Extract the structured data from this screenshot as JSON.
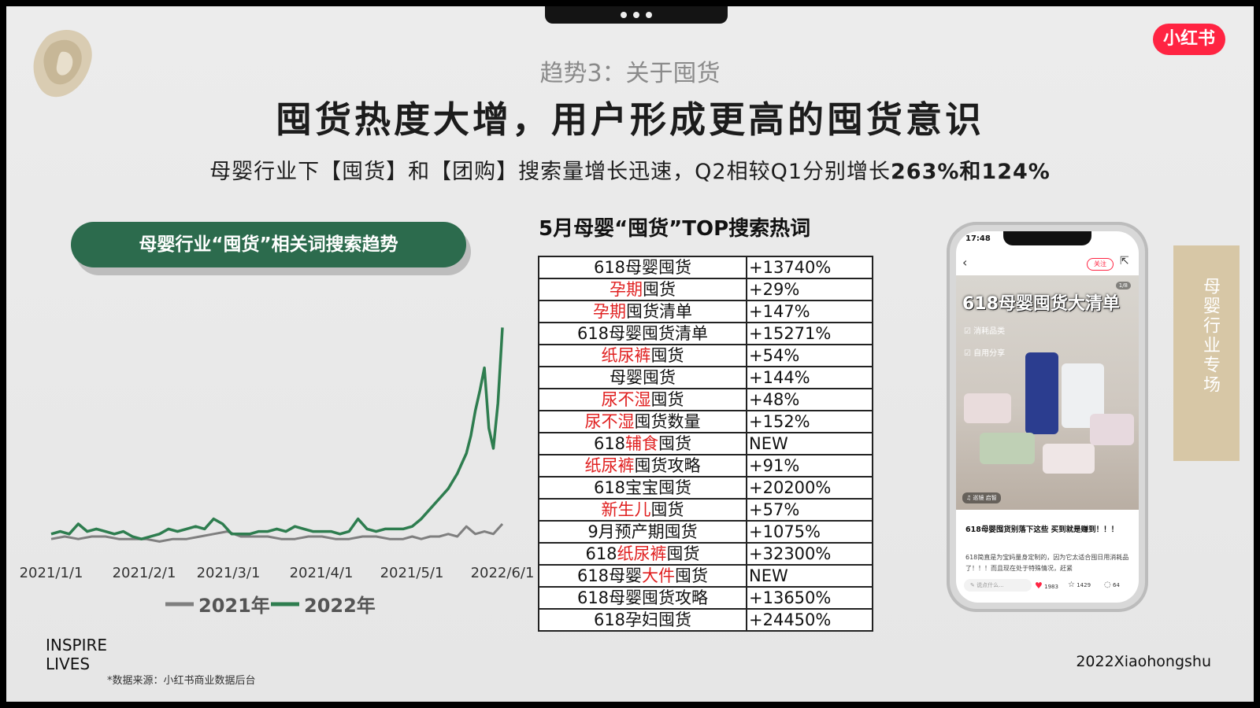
{
  "header": {
    "subtitle": "趋势3：关于囤货",
    "headline": "囤货热度大增，用户形成更高的囤货意识",
    "desc_prefix": "母婴行业下【囤货】和【团购】搜索量增长迅速，Q2相较Q1分别增长",
    "desc_highlight": "263%和124%"
  },
  "brand_logo": "小红书",
  "chart_pill": "母婴行业“囤货”相关词搜索趋势",
  "chart_data": {
    "type": "line",
    "x_tick_labels": [
      "2021/1/1",
      "2021/2/1",
      "2021/3/1",
      "2021/4/1",
      "2021/5/1",
      "2022/6/1"
    ],
    "legend": [
      "2021年",
      "2022年"
    ],
    "ylim": [
      0,
      100
    ],
    "grid": false,
    "series": [
      {
        "name": "2021年",
        "color": "#7f7f7f",
        "x": [
          0,
          3,
          6,
          9,
          12,
          15,
          18,
          21,
          24,
          27,
          30,
          33,
          36,
          39,
          42,
          45,
          48,
          51,
          54,
          57,
          60,
          63,
          66,
          69,
          72,
          75,
          78,
          80,
          82,
          84,
          86,
          88,
          90,
          92,
          94,
          96,
          98,
          100
        ],
        "values": [
          4,
          5,
          4,
          5,
          5,
          4,
          4,
          4,
          3,
          4,
          4,
          5,
          6,
          7,
          5,
          5,
          5,
          4,
          4,
          5,
          5,
          4,
          4,
          5,
          5,
          4,
          4,
          5,
          4,
          5,
          5,
          6,
          5,
          9,
          6,
          7,
          6,
          10
        ]
      },
      {
        "name": "2022年",
        "color": "#2e7d4f",
        "x": [
          0,
          2,
          4,
          6,
          8,
          10,
          12,
          14,
          16,
          18,
          20,
          22,
          24,
          26,
          28,
          30,
          32,
          34,
          36,
          38,
          40,
          42,
          44,
          46,
          48,
          50,
          52,
          54,
          56,
          58,
          60,
          62,
          64,
          66,
          68,
          70,
          72,
          74,
          76,
          78,
          80,
          82,
          84,
          86,
          88,
          90,
          91,
          92,
          93,
          94,
          95,
          96,
          97,
          98,
          99,
          100
        ],
        "values": [
          6,
          7,
          6,
          10,
          7,
          8,
          7,
          6,
          7,
          5,
          4,
          5,
          6,
          8,
          7,
          8,
          9,
          8,
          12,
          10,
          6,
          6,
          6,
          7,
          7,
          8,
          7,
          9,
          8,
          7,
          7,
          7,
          6,
          7,
          12,
          8,
          7,
          8,
          8,
          8,
          9,
          12,
          16,
          20,
          24,
          30,
          34,
          38,
          45,
          55,
          63,
          72,
          48,
          40,
          58,
          88
        ]
      }
    ]
  },
  "table": {
    "title": "5月母婴“囤货”TOP搜索热词",
    "rows": [
      {
        "pre": "618母婴囤货",
        "red": "",
        "post": "",
        "value": "+13740%"
      },
      {
        "pre": "",
        "red": "孕期",
        "post": "囤货",
        "value": "+29%"
      },
      {
        "pre": "",
        "red": "孕期",
        "post": "囤货清单",
        "value": "+147%"
      },
      {
        "pre": "618母婴囤货清单",
        "red": "",
        "post": "",
        "value": "+15271%"
      },
      {
        "pre": "",
        "red": "纸尿裤",
        "post": "囤货",
        "value": "+54%"
      },
      {
        "pre": "母婴囤货",
        "red": "",
        "post": "",
        "value": "+144%"
      },
      {
        "pre": "",
        "red": "尿不湿",
        "post": "囤货",
        "value": "+48%"
      },
      {
        "pre": "",
        "red": "尿不湿",
        "post": "囤货数量",
        "value": "+152%"
      },
      {
        "pre": "618",
        "red": "辅食",
        "post": "囤货",
        "value": "NEW"
      },
      {
        "pre": "",
        "red": "纸尿裤",
        "post": "囤货攻略",
        "value": "+91%"
      },
      {
        "pre": "618宝宝囤货",
        "red": "",
        "post": "",
        "value": "+20200%"
      },
      {
        "pre": "",
        "red": "新生儿",
        "post": "囤货",
        "value": "+57%"
      },
      {
        "pre": "9月预产期囤货",
        "red": "",
        "post": "",
        "value": "+1075%"
      },
      {
        "pre": "618",
        "red": "纸尿裤",
        "post": "囤货",
        "value": "+32300%"
      },
      {
        "pre": "618母婴",
        "red": "大件",
        "post": "囤货",
        "value": "NEW"
      },
      {
        "pre": "618母婴囤货攻略",
        "red": "",
        "post": "",
        "value": "+13650%"
      },
      {
        "pre": "618孕妇囤货",
        "red": "",
        "post": "",
        "value": "+24450%"
      }
    ]
  },
  "phone": {
    "time": "17:48",
    "follow": "关注",
    "pager": "1/8",
    "photo_title": "618母婴囤货大清单",
    "tag1": "☑ 消耗品类",
    "tag2": "☑ 自用分享",
    "photo_bottom_tag": "♫ 巡镜 启智",
    "post_title": "618母婴囤货别落下这些 买到就是赚到！！！",
    "post_body": "618简直是为宝妈量身定制的，因为它太适合囤日用消耗品了！！！而且现在处于特殊情况，赶紧",
    "input_placeholder": "✎ 说点什么...",
    "likes": "1983",
    "stars": "1429",
    "comments": "64"
  },
  "side_tab": "母婴行业专场",
  "brand": {
    "line1": "INSPIRE",
    "line2": "LIVES"
  },
  "source": "*数据来源：小红书商业数据后台",
  "footer_right": "2022Xiaohongshu"
}
